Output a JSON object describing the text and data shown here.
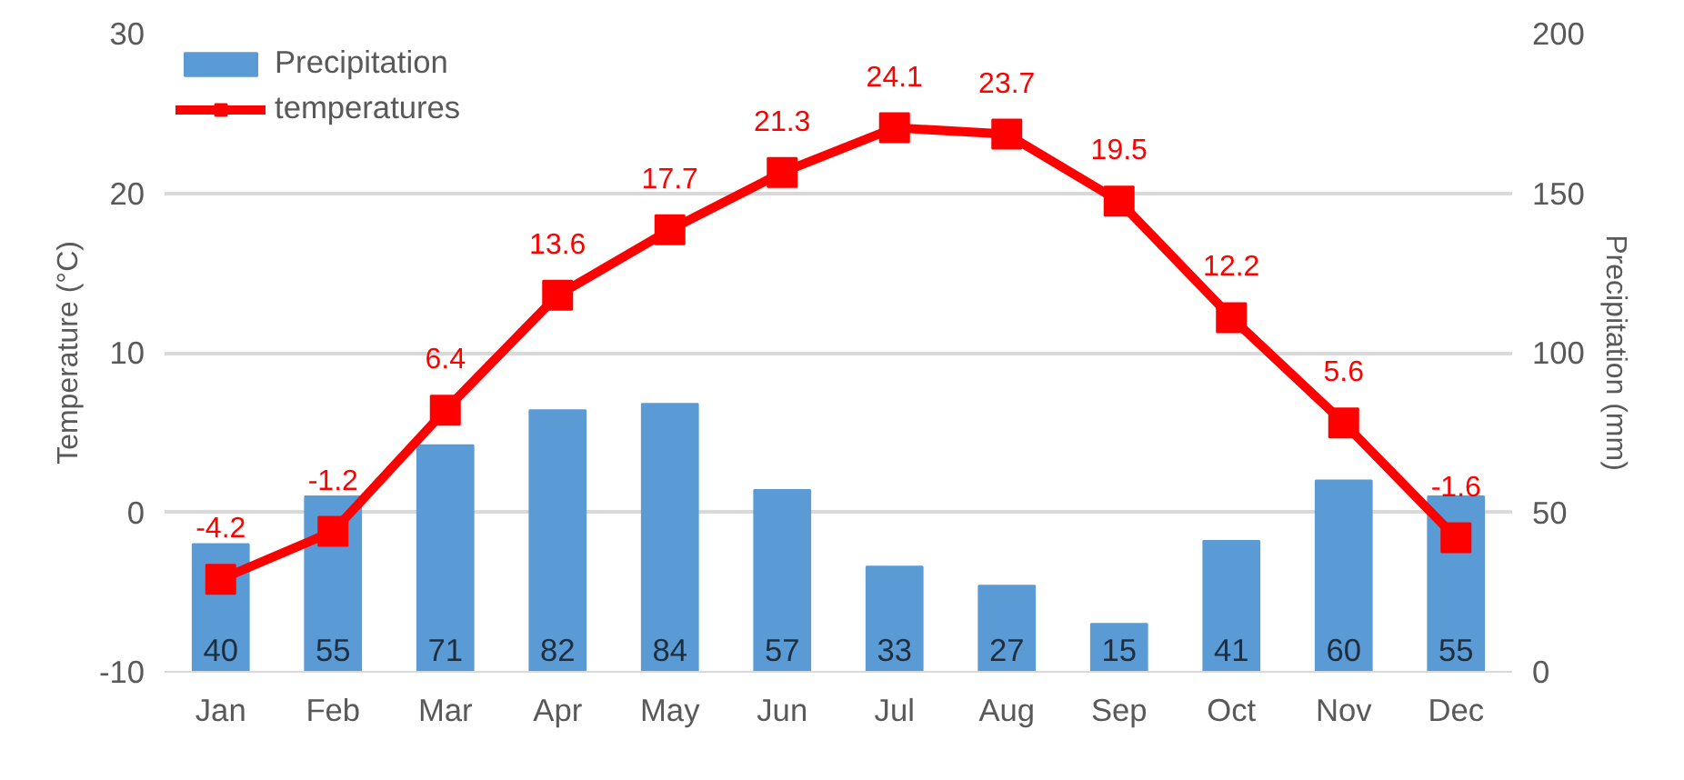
{
  "chart_data": {
    "type": "bar",
    "xlabel": null,
    "ylabel": "Temperature (°C)",
    "y2label": "Precipitation (mm)",
    "categories": [
      "Jan",
      "Feb",
      "Mar",
      "Apr",
      "May",
      "Jun",
      "Jul",
      "Aug",
      "Sep",
      "Oct",
      "Nov",
      "Dec"
    ],
    "series": [
      {
        "name": "Precipitation",
        "axis": "y2",
        "color": "#5b9bd5",
        "values": [
          40,
          55,
          71,
          82,
          84,
          57,
          33,
          27,
          15,
          41,
          60,
          55
        ]
      },
      {
        "name": "temperatures",
        "type": "line",
        "axis": "y",
        "color": "#ff0000",
        "marker": "square",
        "values": [
          -4.2,
          -1.2,
          6.4,
          13.6,
          17.7,
          21.3,
          24.1,
          23.7,
          19.5,
          12.2,
          5.6,
          -1.6
        ]
      }
    ],
    "ylim": [
      -10,
      30
    ],
    "yticks": [
      -10,
      0,
      10,
      20,
      30
    ],
    "y2lim": [
      0,
      200
    ],
    "y2ticks": [
      0,
      50,
      100,
      150,
      200
    ],
    "grid": "y",
    "legend": "top left",
    "data_labels": true
  }
}
